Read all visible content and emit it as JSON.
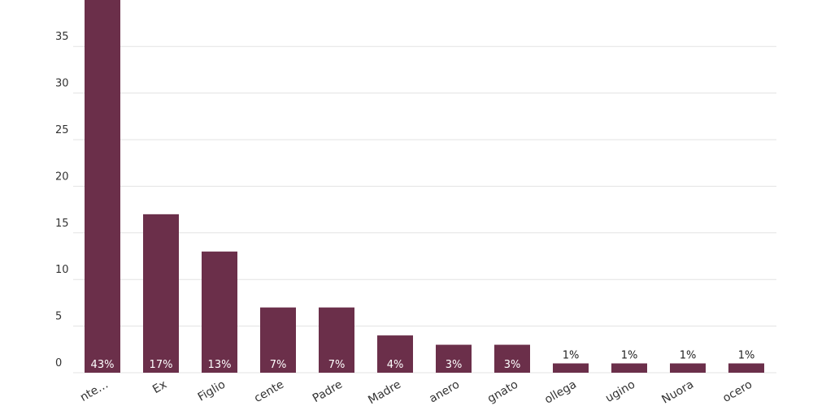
{
  "chart_data": {
    "type": "bar",
    "categories": [
      "nte…",
      "Ex",
      "Figlio",
      "cente",
      "Padre",
      "Madre",
      "anero",
      "gnato",
      "ollega",
      "ugino",
      "Nuora",
      "ocero"
    ],
    "values": [
      43,
      17,
      13,
      7,
      7,
      4,
      3,
      3,
      1,
      1,
      1,
      1
    ],
    "value_labels": [
      "43%",
      "17%",
      "13%",
      "7%",
      "7%",
      "4%",
      "3%",
      "3%",
      "1%",
      "1%",
      "1%",
      "1%"
    ],
    "color": "#6b2f4a",
    "ylim": [
      0,
      40
    ],
    "yticks": [
      0,
      5,
      10,
      15,
      20,
      25,
      30,
      35
    ],
    "grid": true
  }
}
